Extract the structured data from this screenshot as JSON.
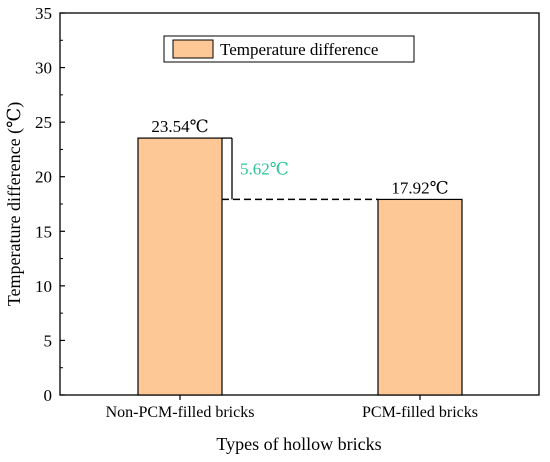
{
  "chart_data": {
    "type": "bar",
    "title": "",
    "xlabel": "Types of hollow bricks",
    "ylabel": "Temperature difference (℃)",
    "categories": [
      "Non-PCM-filled bricks",
      "PCM-filled bricks"
    ],
    "series": [
      {
        "name": "Temperature difference",
        "values": [
          23.54,
          17.92
        ]
      }
    ],
    "data_labels": [
      "23.54℃",
      "17.92℃"
    ],
    "ylim": [
      0,
      35
    ],
    "yticks": [
      0,
      5,
      10,
      15,
      20,
      25,
      30,
      35
    ],
    "grid": false,
    "legend_position": "top-center",
    "annotation": {
      "text": "5.62℃",
      "from_value": 23.54,
      "to_value": 17.92
    },
    "colors": {
      "bar_fill": "#fdc796",
      "bar_stroke": "#000000",
      "annotation_text": "#2cc39a",
      "axis": "#000000"
    }
  }
}
